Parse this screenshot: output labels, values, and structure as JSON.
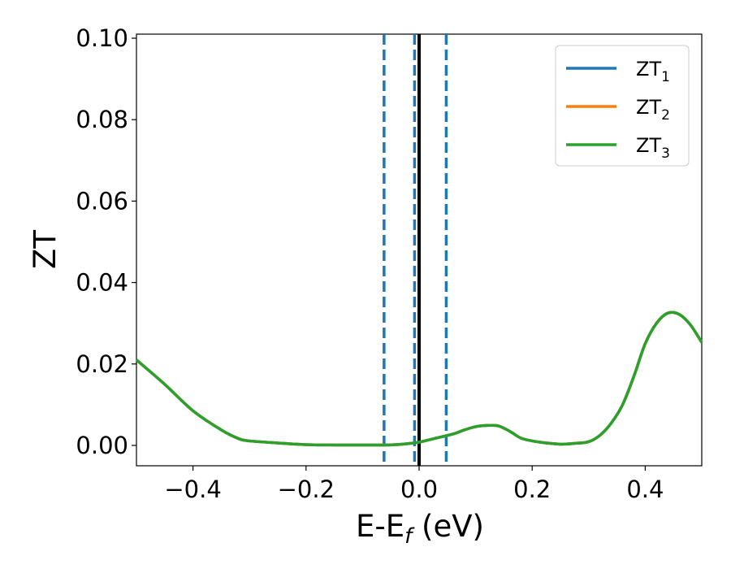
{
  "chart_data": {
    "type": "line",
    "title": "",
    "xlabel_main": "E-E",
    "xlabel_sub": "f",
    "xlabel_unit": " (eV)",
    "ylabel": "ZT",
    "xlim": [
      -0.5,
      0.5
    ],
    "ylim": [
      -0.005,
      0.101
    ],
    "x_ticks": [
      -0.4,
      -0.2,
      0.0,
      0.2,
      0.4
    ],
    "x_tick_labels": [
      "−0.4",
      "−0.2",
      "0.0",
      "0.2",
      "0.4"
    ],
    "y_ticks": [
      0.0,
      0.02,
      0.04,
      0.06,
      0.08,
      0.1
    ],
    "y_tick_labels": [
      "0.00",
      "0.02",
      "0.04",
      "0.06",
      "0.08",
      "0.10"
    ],
    "grid": false,
    "legend_position": "top-right",
    "series": [
      {
        "name": "ZT",
        "subscript": "1",
        "color": "#1f77b4",
        "x": [
          -0.5,
          -0.45,
          -0.4,
          -0.35,
          -0.32,
          -0.3,
          -0.25,
          -0.2,
          -0.15,
          -0.1,
          -0.06,
          -0.03,
          0.0,
          0.03,
          0.06,
          0.08,
          0.1,
          0.12,
          0.14,
          0.16,
          0.18,
          0.2,
          0.225,
          0.25,
          0.275,
          0.3,
          0.32,
          0.34,
          0.36,
          0.38,
          0.4,
          0.42,
          0.44,
          0.46,
          0.48,
          0.5
        ],
        "y": [
          0.021,
          0.015,
          0.0085,
          0.0038,
          0.0017,
          0.0011,
          0.0006,
          0.0002,
          0.0001,
          0.0001,
          0.0001,
          0.0003,
          0.0008,
          0.0018,
          0.0028,
          0.0038,
          0.0046,
          0.0049,
          0.0048,
          0.0035,
          0.0018,
          0.0011,
          0.0006,
          0.0003,
          0.0005,
          0.0009,
          0.0025,
          0.0055,
          0.01,
          0.017,
          0.025,
          0.03,
          0.0325,
          0.0322,
          0.0296,
          0.0253
        ]
      },
      {
        "name": "ZT",
        "subscript": "2",
        "color": "#ff7f0e",
        "x": [
          -0.5,
          -0.45,
          -0.4,
          -0.35,
          -0.32,
          -0.3,
          -0.25,
          -0.2,
          -0.15,
          -0.1,
          -0.06,
          -0.03,
          0.0,
          0.03,
          0.06,
          0.08,
          0.1,
          0.12,
          0.14,
          0.16,
          0.18,
          0.2,
          0.225,
          0.25,
          0.275,
          0.3,
          0.32,
          0.34,
          0.36,
          0.38,
          0.4,
          0.42,
          0.44,
          0.46,
          0.48,
          0.5
        ],
        "y": [
          0.021,
          0.015,
          0.0085,
          0.0038,
          0.0017,
          0.0011,
          0.0006,
          0.0002,
          0.0001,
          0.0001,
          0.0001,
          0.0003,
          0.0008,
          0.0018,
          0.0028,
          0.0038,
          0.0046,
          0.0049,
          0.0048,
          0.0035,
          0.0018,
          0.0011,
          0.0006,
          0.0003,
          0.0005,
          0.0009,
          0.0025,
          0.0055,
          0.01,
          0.017,
          0.025,
          0.03,
          0.0325,
          0.0322,
          0.0296,
          0.0253
        ]
      },
      {
        "name": "ZT",
        "subscript": "3",
        "color": "#2ca02c",
        "x": [
          -0.5,
          -0.45,
          -0.4,
          -0.35,
          -0.32,
          -0.3,
          -0.25,
          -0.2,
          -0.15,
          -0.1,
          -0.06,
          -0.03,
          0.0,
          0.03,
          0.06,
          0.08,
          0.1,
          0.12,
          0.14,
          0.16,
          0.18,
          0.2,
          0.225,
          0.25,
          0.275,
          0.3,
          0.32,
          0.34,
          0.36,
          0.38,
          0.4,
          0.42,
          0.44,
          0.46,
          0.48,
          0.5
        ],
        "y": [
          0.021,
          0.015,
          0.0085,
          0.0038,
          0.0017,
          0.0011,
          0.0006,
          0.0002,
          0.0001,
          0.0001,
          0.0001,
          0.0003,
          0.0008,
          0.0018,
          0.0028,
          0.0038,
          0.0046,
          0.0049,
          0.0048,
          0.0035,
          0.0018,
          0.0011,
          0.0006,
          0.0003,
          0.0005,
          0.0009,
          0.0025,
          0.0055,
          0.01,
          0.017,
          0.025,
          0.03,
          0.0325,
          0.0322,
          0.0296,
          0.0253
        ]
      }
    ],
    "vertical_lines": [
      {
        "x": -0.062,
        "style": "dashed",
        "color": "#1f77b4"
      },
      {
        "x": -0.008,
        "style": "dashed",
        "color": "#1f77b4"
      },
      {
        "x": 0.048,
        "style": "dashed",
        "color": "#1f77b4"
      },
      {
        "x": 0.0,
        "style": "solid",
        "color": "#000000"
      }
    ]
  }
}
